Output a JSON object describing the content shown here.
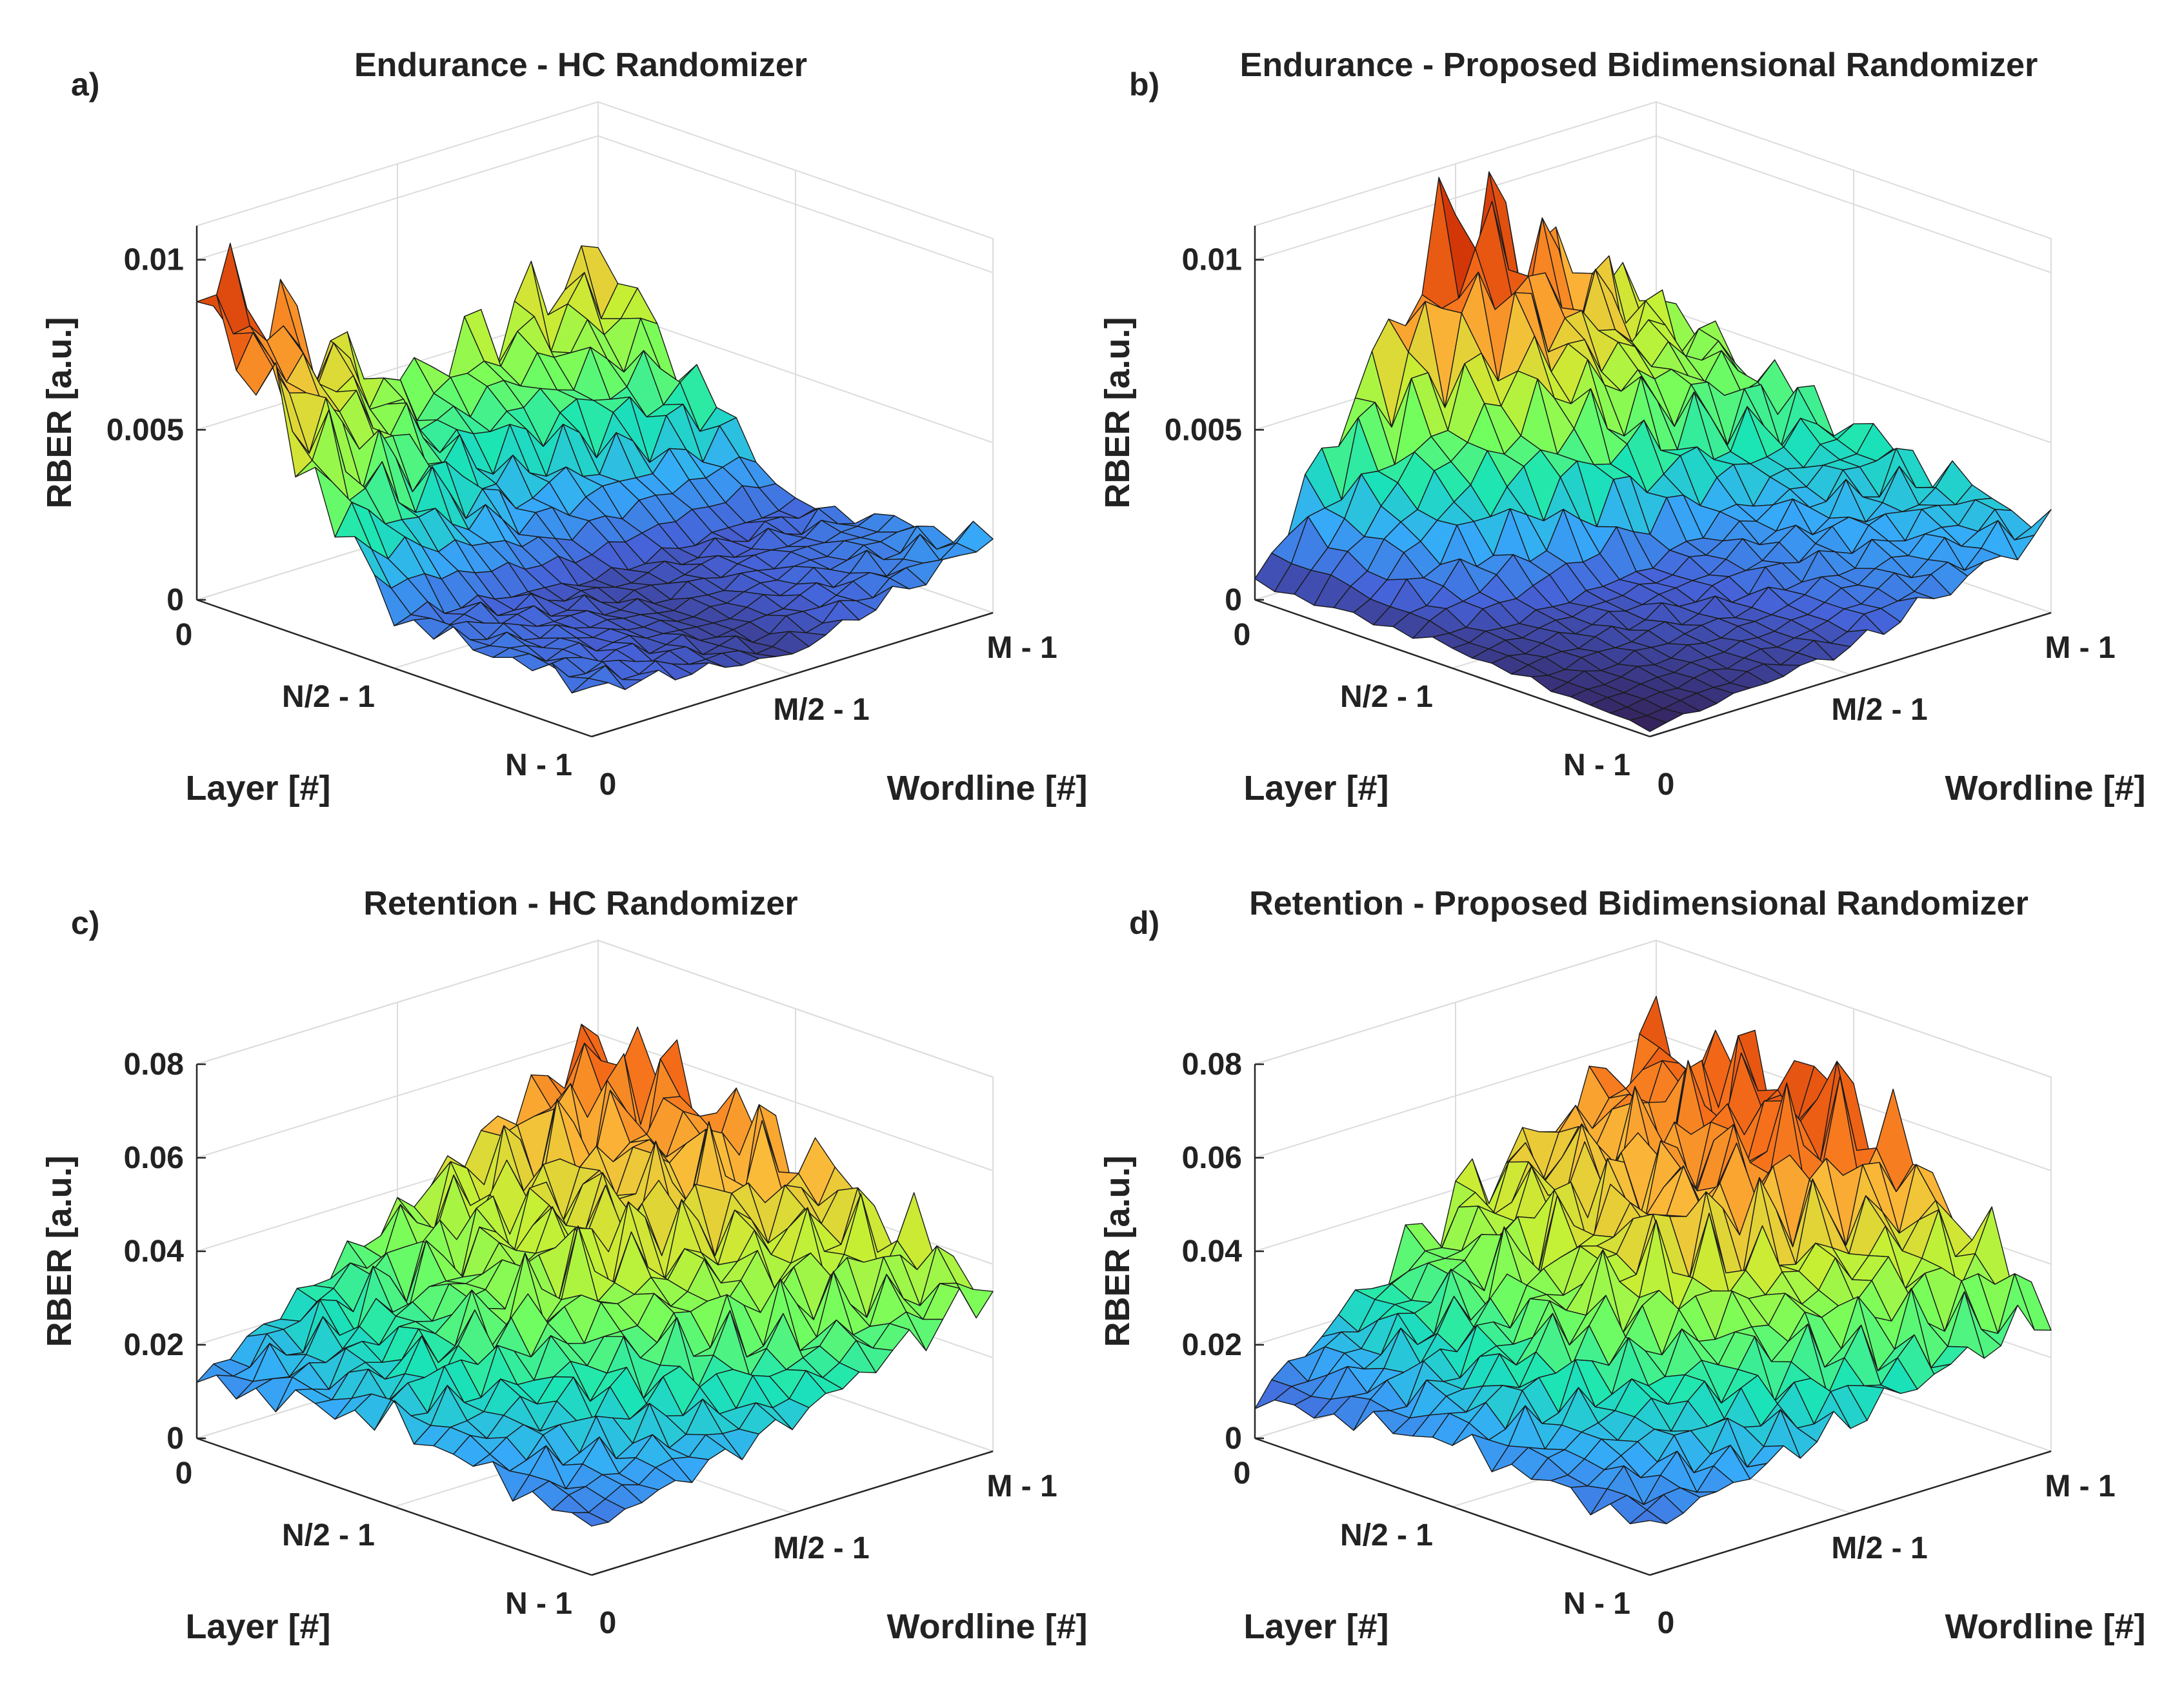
{
  "figure": {
    "panels": [
      {
        "letter": "a)",
        "title": "Endurance - HC Randomizer",
        "zlabel": "RBER [a.u.]",
        "xlabel": "Layer [#]",
        "ylabel": "Wordline [#]",
        "xticks": [
          "0",
          "N/2 - 1",
          "N - 1"
        ],
        "yticks": [
          "0",
          "M/2 - 1",
          "M - 1"
        ],
        "zticks": [
          "0",
          "0.005",
          "0.01"
        ]
      },
      {
        "letter": "b)",
        "title": "Endurance - Proposed Bidimensional Randomizer",
        "zlabel": "RBER [a.u.]",
        "xlabel": "Layer [#]",
        "ylabel": "Wordline [#]",
        "xticks": [
          "0",
          "N/2 - 1",
          "N - 1"
        ],
        "yticks": [
          "0",
          "M/2 - 1",
          "M - 1"
        ],
        "zticks": [
          "0",
          "0.005",
          "0.01"
        ]
      },
      {
        "letter": "c)",
        "title": "Retention - HC Randomizer",
        "zlabel": "RBER [a.u.]",
        "xlabel": "Layer [#]",
        "ylabel": "Wordline [#]",
        "xticks": [
          "0",
          "N/2 - 1",
          "N - 1"
        ],
        "yticks": [
          "0",
          "M/2 - 1",
          "M - 1"
        ],
        "zticks": [
          "0",
          "0.02",
          "0.04",
          "0.06",
          "0.08"
        ]
      },
      {
        "letter": "d)",
        "title": "Retention - Proposed Bidimensional Randomizer",
        "zlabel": "RBER [a.u.]",
        "xlabel": "Layer [#]",
        "ylabel": "Wordline [#]",
        "xticks": [
          "0",
          "N/2 - 1",
          "N - 1"
        ],
        "yticks": [
          "0",
          "M/2 - 1",
          "M - 1"
        ],
        "zticks": [
          "0",
          "0.02",
          "0.04",
          "0.06",
          "0.08"
        ]
      }
    ]
  },
  "chart_data": [
    {
      "type": "surface",
      "title": "Endurance - HC Randomizer",
      "xlabel": "Layer [#]",
      "ylabel": "Wordline [#]",
      "zlabel": "RBER [a.u.]",
      "zlim": [
        0,
        0.011
      ],
      "colormap": "turbo",
      "layers": [
        "0",
        "N/2 - 1",
        "N - 1"
      ],
      "wordlines": [
        "0",
        "M/2 - 1",
        "M - 1"
      ],
      "grid_rows": [
        "0",
        "N/2 - 1",
        "N - 1"
      ],
      "grid_cols": [
        "0",
        "M/2 - 1",
        "M - 1"
      ],
      "z_grid": [
        [
          0.0095,
          0.0045,
          0.0065
        ],
        [
          0.0015,
          0.0008,
          0.0012
        ],
        [
          0.0014,
          0.0006,
          0.0022
        ]
      ]
    },
    {
      "type": "surface",
      "title": "Endurance - Proposed Bidimensional Randomizer",
      "xlabel": "Layer [#]",
      "ylabel": "Wordline [#]",
      "zlabel": "RBER [a.u.]",
      "zlim": [
        0,
        0.011
      ],
      "colormap": "turbo",
      "layers": [
        "0",
        "N/2 - 1",
        "N - 1"
      ],
      "wordlines": [
        "0",
        "M/2 - 1",
        "M - 1"
      ],
      "grid_rows": [
        "0",
        "N/2 - 1",
        "N - 1"
      ],
      "grid_cols": [
        "0",
        "M/2 - 1",
        "M - 1"
      ],
      "z_grid": [
        [
          0.0005,
          0.0097,
          0.005
        ],
        [
          0.0006,
          0.0012,
          0.0035
        ],
        [
          0.0002,
          0.0008,
          0.0025
        ]
      ]
    },
    {
      "type": "surface",
      "title": "Retention - HC Randomizer",
      "xlabel": "Layer [#]",
      "ylabel": "Wordline [#]",
      "zlabel": "RBER [a.u.]",
      "zlim": [
        0,
        0.08
      ],
      "colormap": "turbo",
      "layers": [
        "0",
        "N/2 - 1",
        "N - 1"
      ],
      "wordlines": [
        "0",
        "M/2 - 1",
        "M - 1"
      ],
      "grid_rows": [
        "0",
        "N/2 - 1",
        "N - 1"
      ],
      "grid_cols": [
        "0",
        "M/2 - 1",
        "M - 1"
      ],
      "z_grid": [
        [
          0.012,
          0.035,
          0.06
        ],
        [
          0.018,
          0.04,
          0.05
        ],
        [
          0.01,
          0.02,
          0.035
        ]
      ]
    },
    {
      "type": "surface",
      "title": "Retention - Proposed Bidimensional Randomizer",
      "xlabel": "Layer [#]",
      "ylabel": "Wordline [#]",
      "zlabel": "RBER [a.u.]",
      "zlim": [
        0,
        0.08
      ],
      "colormap": "turbo",
      "layers": [
        "0",
        "N/2 - 1",
        "N - 1"
      ],
      "wordlines": [
        "0",
        "M/2 - 1",
        "M - 1"
      ],
      "grid_rows": [
        "0",
        "N/2 - 1",
        "N - 1"
      ],
      "grid_cols": [
        "0",
        "M/2 - 1",
        "M - 1"
      ],
      "z_grid": [
        [
          0.008,
          0.038,
          0.058
        ],
        [
          0.014,
          0.045,
          0.062
        ],
        [
          0.01,
          0.02,
          0.03
        ]
      ]
    }
  ]
}
